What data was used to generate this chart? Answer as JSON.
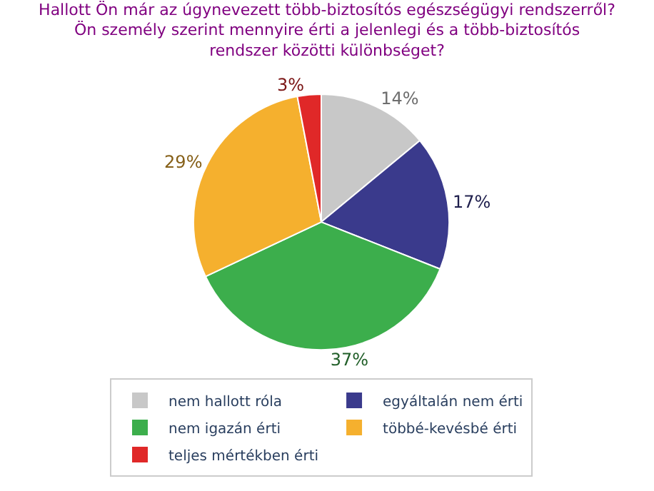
{
  "chart_data": {
    "type": "pie",
    "title": "Hallott Ön már az úgynevezett több-biztosítós egészségügyi rendszerről?\nÖn személy szerint mennyire érti a jelenlegi és a több-biztosítós\nrendszer közötti különbséget?",
    "categories": [
      "nem hallott róla",
      "egyáltalán nem érti",
      "nem igazán érti",
      "többé-kevésbé érti",
      "teljes mértékben érti"
    ],
    "values": [
      14,
      17,
      37,
      29,
      3
    ],
    "value_labels": [
      "14%",
      "17%",
      "37%",
      "29%",
      "3%"
    ],
    "colors": [
      "#c8c8c8",
      "#3a3a8c",
      "#3cae4c",
      "#f5b02e",
      "#e02828"
    ],
    "legend": "bottom"
  }
}
